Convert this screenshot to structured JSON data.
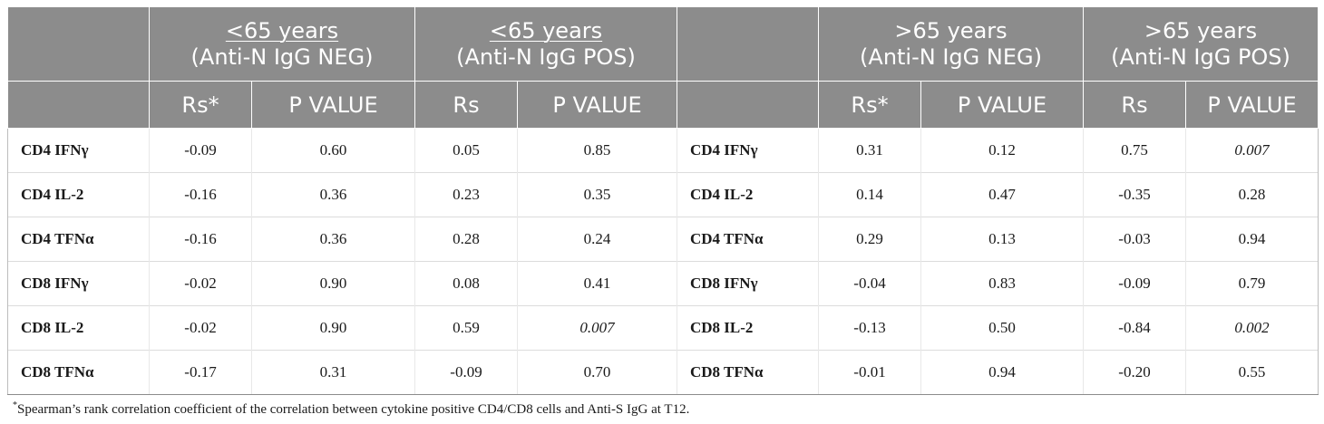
{
  "table": {
    "groups": [
      {
        "line1": "<65 years",
        "line2": "(Anti-N IgG NEG)"
      },
      {
        "line1": "<65 years",
        "line2": "(Anti-N IgG POS)"
      },
      {
        "line1": ">65 years",
        "line2": "(Anti-N IgG NEG)"
      },
      {
        "line1": ">65 years",
        "line2": "(Anti-N IgG POS)"
      }
    ],
    "subheaders": [
      "Rs*",
      "P VALUE",
      "Rs",
      "P VALUE",
      "Rs*",
      "P VALUE",
      "Rs",
      "P VALUE"
    ],
    "rows": [
      {
        "label": "CD4 IFNγ",
        "cells": [
          "-0.09",
          "0.60",
          "0.05",
          "0.85",
          "0.31",
          "0.12",
          "0.75",
          "0.007"
        ]
      },
      {
        "label": "CD4 IL-2",
        "cells": [
          "-0.16",
          "0.36",
          "0.23",
          "0.35",
          "0.14",
          "0.47",
          "-0.35",
          "0.28"
        ]
      },
      {
        "label": "CD4 TFNα",
        "cells": [
          "-0.16",
          "0.36",
          "0.28",
          "0.24",
          "0.29",
          "0.13",
          "-0.03",
          "0.94"
        ]
      },
      {
        "label": "CD8 IFNγ",
        "cells": [
          "-0.02",
          "0.90",
          "0.08",
          "0.41",
          "-0.04",
          "0.83",
          "-0.09",
          "0.79"
        ]
      },
      {
        "label": "CD8 IL-2",
        "cells": [
          "-0.02",
          "0.90",
          "0.59",
          "0.007",
          "-0.13",
          "0.50",
          "-0.84",
          "0.002"
        ]
      },
      {
        "label": "CD8 TFNα",
        "cells": [
          "-0.17",
          "0.31",
          "-0.09",
          "0.70",
          "-0.01",
          "0.94",
          "-0.20",
          "0.55"
        ]
      }
    ]
  },
  "footnote": {
    "marker": "*",
    "text": "Spearman’s rank correlation coefficient of the correlation between cytokine positive CD4/CD8 cells and Anti-S IgG at T12."
  },
  "colors": {
    "header_bg": "#8c8c8c",
    "header_text": "#ffffff"
  }
}
